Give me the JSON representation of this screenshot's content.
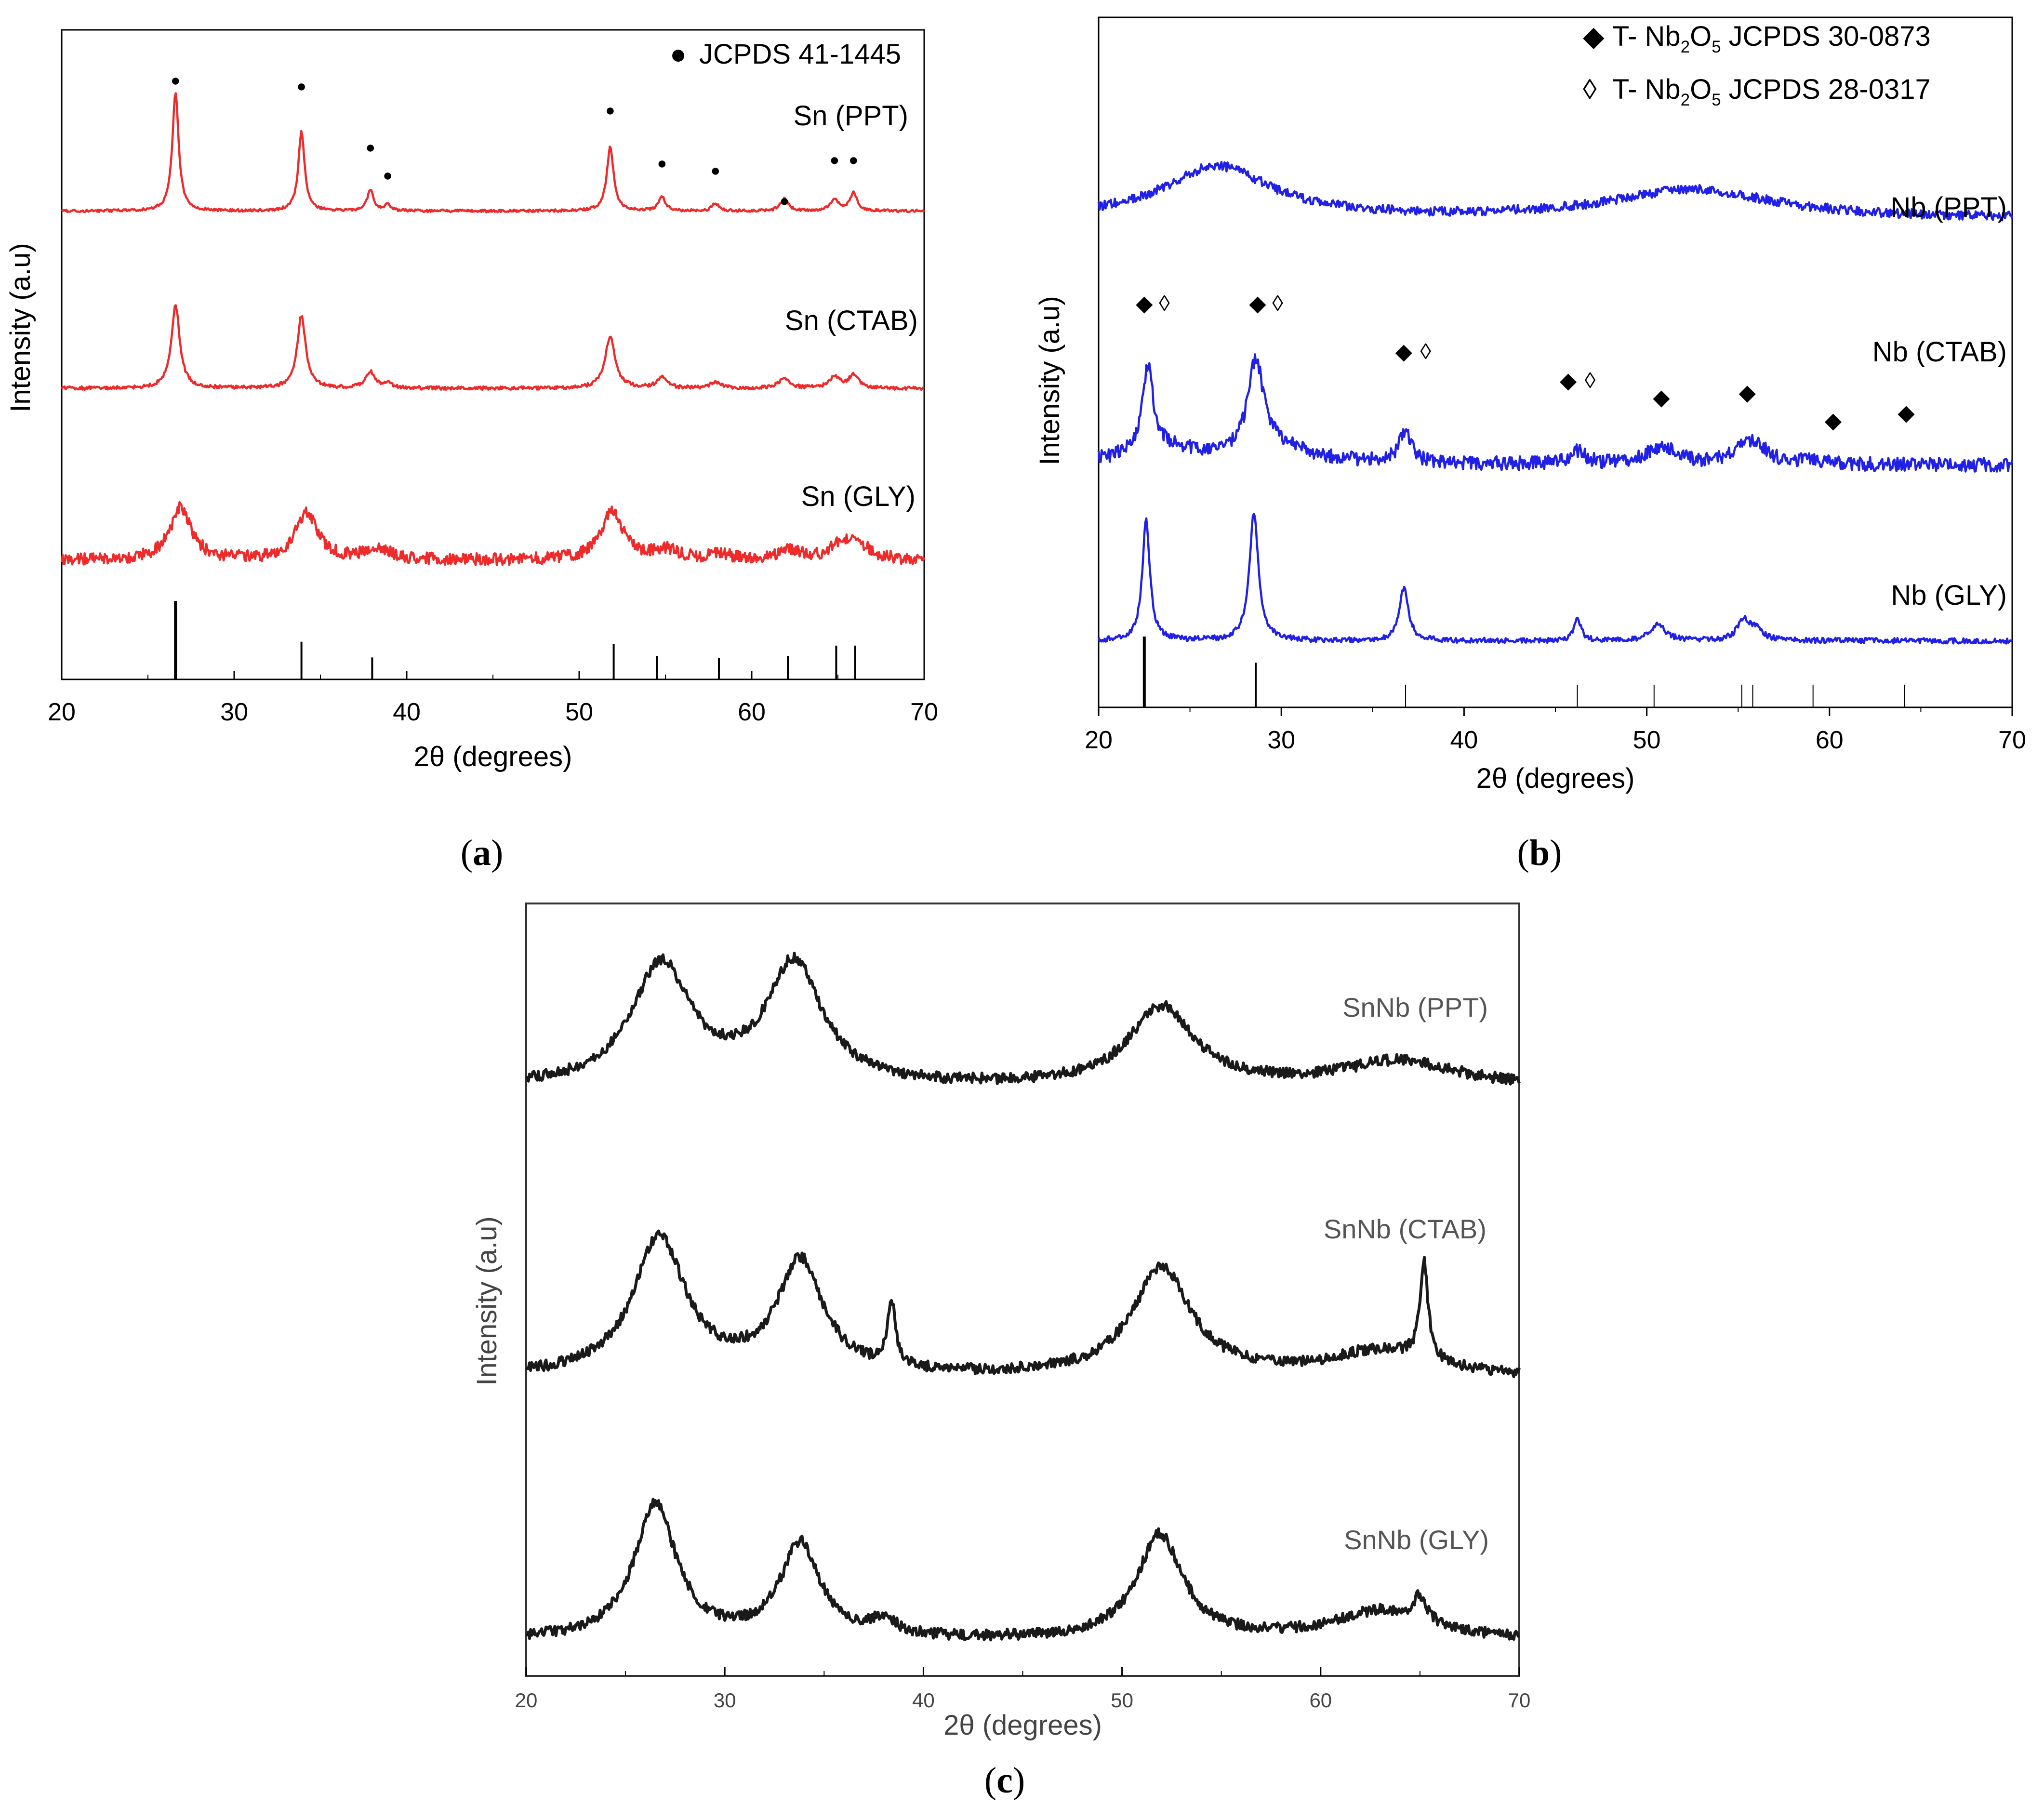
{
  "chart_data": [
    {
      "type": "line",
      "panel_label": "a",
      "xlabel": "2θ (degrees)",
      "ylabel": "Intensity (a.u)",
      "xlim": [
        20,
        70
      ],
      "x_ticks": [
        "20",
        "30",
        "40",
        "50",
        "60",
        "70"
      ],
      "color": "#ee2a2a",
      "series": [
        {
          "name": "Sn (PPT)",
          "noise": 0.3,
          "peaks": [
            [
              26.6,
              0.95,
              0.22
            ],
            [
              33.9,
              0.63,
              0.22
            ],
            [
              37.9,
              0.17,
              0.22
            ],
            [
              38.9,
              0.05,
              0.2
            ],
            [
              51.8,
              0.51,
              0.24
            ],
            [
              54.8,
              0.11,
              0.24
            ],
            [
              57.9,
              0.06,
              0.24
            ],
            [
              61.9,
              0.1,
              0.26
            ],
            [
              64.8,
              0.1,
              0.26
            ],
            [
              65.9,
              0.14,
              0.26
            ]
          ]
        },
        {
          "name": "Sn (CTAB)",
          "noise": 0.4,
          "peaks": [
            [
              26.6,
              0.76,
              0.3
            ],
            [
              33.9,
              0.67,
              0.3
            ],
            [
              37.9,
              0.15,
              0.32
            ],
            [
              38.9,
              0.04,
              0.3
            ],
            [
              51.8,
              0.48,
              0.35
            ],
            [
              54.8,
              0.1,
              0.35
            ],
            [
              57.9,
              0.06,
              0.35
            ],
            [
              61.9,
              0.1,
              0.35
            ],
            [
              64.8,
              0.11,
              0.35
            ],
            [
              65.9,
              0.12,
              0.35
            ]
          ]
        },
        {
          "name": "Sn (GLY)",
          "noise": 1.4,
          "peaks": [
            [
              26.9,
              0.54,
              0.75
            ],
            [
              34.2,
              0.5,
              0.75
            ],
            [
              38.3,
              0.13,
              0.8
            ],
            [
              51.9,
              0.5,
              0.8
            ],
            [
              55.0,
              0.1,
              0.8
            ],
            [
              58.2,
              0.05,
              0.8
            ],
            [
              62.2,
              0.1,
              0.8
            ],
            [
              65.2,
              0.15,
              0.8
            ],
            [
              66.2,
              0.14,
              0.8
            ]
          ]
        }
      ],
      "markers": [
        {
          "symbol": "●",
          "x": [
            26.6,
            33.9,
            37.9,
            38.9,
            51.8,
            54.8,
            57.9,
            61.9,
            64.8,
            65.9
          ]
        }
      ],
      "legend": [
        {
          "symbol": "●",
          "text": "JCPDS 41-1445"
        }
      ],
      "reference_lines": [
        {
          "x": 26.6,
          "h": 1.0
        },
        {
          "x": 33.9,
          "h": 0.48
        },
        {
          "x": 38.0,
          "h": 0.28
        },
        {
          "x": 52.0,
          "h": 0.45
        },
        {
          "x": 54.5,
          "h": 0.3
        },
        {
          "x": 58.1,
          "h": 0.27
        },
        {
          "x": 62.1,
          "h": 0.3
        },
        {
          "x": 64.9,
          "h": 0.43
        },
        {
          "x": 66.0,
          "h": 0.43
        }
      ]
    },
    {
      "type": "line",
      "panel_label": "b",
      "xlabel": "2θ (degrees)",
      "ylabel": "Intensity (a.u)",
      "xlim": [
        20,
        70
      ],
      "x_ticks": [
        "20",
        "30",
        "40",
        "50",
        "60",
        "70"
      ],
      "color": "#2020e6",
      "series": [
        {
          "name": "Nb (PPT)",
          "noise": 1.2,
          "amorphous": true,
          "peaks": [
            [
              26.5,
              0.36,
              3.6
            ],
            [
              52.5,
              0.2,
              5.5
            ]
          ]
        },
        {
          "name": "Nb (CTAB)",
          "noise": 1.8,
          "peaks": [
            [
              22.7,
              0.58,
              0.35
            ],
            [
              28.6,
              0.61,
              0.5
            ],
            [
              36.8,
              0.22,
              0.4
            ],
            [
              46.2,
              0.09,
              0.5
            ],
            [
              50.8,
              0.12,
              1.0
            ],
            [
              55.4,
              0.13,
              0.8
            ],
            [
              56.2,
              0.06,
              0.8
            ],
            [
              59.0,
              0.03,
              0.8
            ],
            [
              23.5,
              0.1,
              2.5
            ],
            [
              29.5,
              0.12,
              2.5
            ]
          ]
        },
        {
          "name": "Nb (GLY)",
          "noise": 0.7,
          "peaks": [
            [
              22.6,
              0.76,
              0.25
            ],
            [
              28.5,
              0.8,
              0.3
            ],
            [
              36.7,
              0.33,
              0.3
            ],
            [
              46.2,
              0.13,
              0.25
            ],
            [
              50.6,
              0.1,
              0.5
            ],
            [
              55.3,
              0.13,
              0.4
            ],
            [
              56.0,
              0.07,
              0.4
            ]
          ]
        }
      ],
      "markers": [
        {
          "symbol": "◆",
          "x": [
            22.5,
            28.7,
            36.7,
            45.7,
            50.8,
            55.5,
            60.2,
            64.2
          ]
        },
        {
          "symbol": "◊",
          "x": [
            23.6,
            29.8,
            37.9,
            46.9
          ]
        }
      ],
      "legend": [
        {
          "symbol": "◆",
          "text": "T- Nb",
          "sub": "2",
          "text2": "O",
          "sub2": "5",
          "text3": " JCPDS 30-0873"
        },
        {
          "symbol": "◊",
          "text": "T- Nb",
          "sub": "2",
          "text2": "O",
          "sub2": "5",
          "text3": " JCPDS 28-0317"
        }
      ],
      "reference_lines": [
        {
          "x": 22.5,
          "h": 1.0
        },
        {
          "x": 28.6,
          "h": 0.63
        },
        {
          "x": 36.8,
          "h": 0.32
        },
        {
          "x": 46.2,
          "h": 0.32
        },
        {
          "x": 50.4,
          "h": 0.32
        },
        {
          "x": 55.2,
          "h": 0.32
        },
        {
          "x": 55.8,
          "h": 0.32
        },
        {
          "x": 59.1,
          "h": 0.32
        },
        {
          "x": 64.1,
          "h": 0.32
        }
      ]
    },
    {
      "type": "line",
      "panel_label": "c",
      "xlabel": "2θ (degrees)",
      "ylabel": "Intensity (a.u)",
      "xlim": [
        20,
        70
      ],
      "x_ticks": [
        "20",
        "30",
        "40",
        "50",
        "60",
        "70"
      ],
      "color": "#1a1a1a",
      "series": [
        {
          "name": "SnNb (PPT)",
          "noise": 1.6,
          "peaks": [
            [
              26.8,
              0.95,
              1.8
            ],
            [
              33.5,
              0.95,
              1.7
            ],
            [
              52.0,
              0.62,
              2.0
            ],
            [
              64.0,
              0.2,
              3.5
            ]
          ]
        },
        {
          "name": "SnNb (CTAB)",
          "noise": 1.6,
          "peaks": [
            [
              26.7,
              1.0,
              1.6
            ],
            [
              33.8,
              0.82,
              1.4
            ],
            [
              38.4,
              0.45,
              0.25
            ],
            [
              52.0,
              0.78,
              1.8
            ],
            [
              63.0,
              0.18,
              3.0
            ],
            [
              65.2,
              0.72,
              0.25
            ]
          ]
        },
        {
          "name": "SnNb (GLY)",
          "noise": 1.6,
          "peaks": [
            [
              26.5,
              1.05,
              1.3
            ],
            [
              33.8,
              0.74,
              1.2
            ],
            [
              38.0,
              0.12,
              0.8
            ],
            [
              51.9,
              0.82,
              1.4
            ],
            [
              63.0,
              0.22,
              3.0
            ],
            [
              65.0,
              0.2,
              0.4
            ]
          ]
        }
      ]
    }
  ]
}
